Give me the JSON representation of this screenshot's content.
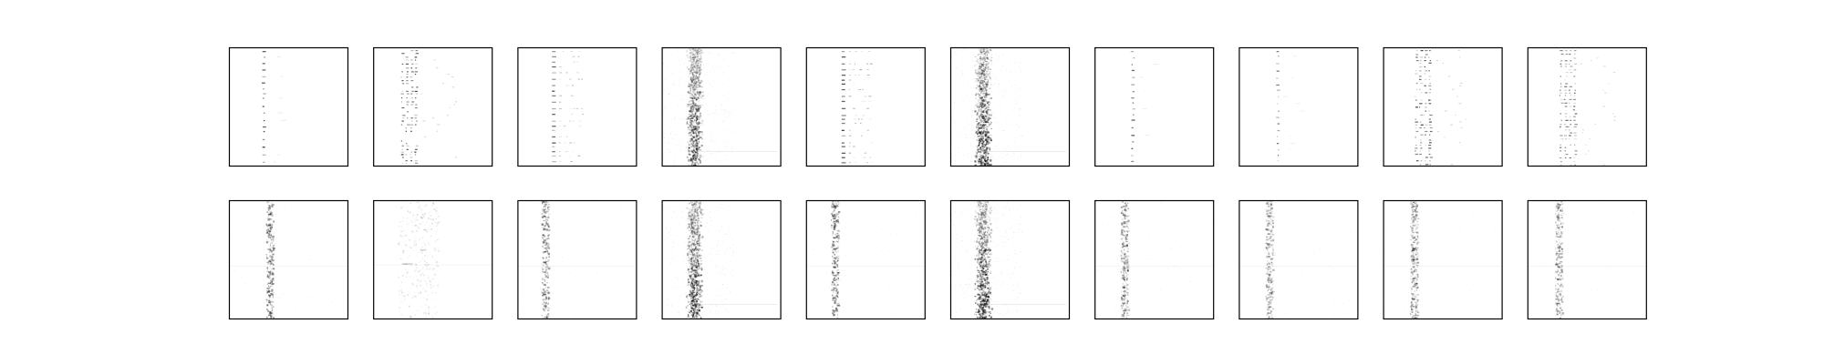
{
  "figure": {
    "rows": 2,
    "columns": 10,
    "colormap": "greys",
    "background_color": "#ffffff",
    "frame_color": "#000000",
    "ink_color": "#000000"
  },
  "panels": [
    {
      "row": 0,
      "col": 0,
      "style": "sparse-dots",
      "strength": 0.85
    },
    {
      "row": 0,
      "col": 1,
      "style": "dense-columns",
      "strength": 0.9
    },
    {
      "row": 0,
      "col": 2,
      "style": "dotted-rows",
      "strength": 0.75
    },
    {
      "row": 0,
      "col": 3,
      "style": "noisy-band",
      "strength": 0.9
    },
    {
      "row": 0,
      "col": 4,
      "style": "dotted-rows",
      "strength": 0.85
    },
    {
      "row": 0,
      "col": 5,
      "style": "noisy-band",
      "strength": 1.0
    },
    {
      "row": 0,
      "col": 6,
      "style": "sparse-dots",
      "strength": 0.7
    },
    {
      "row": 0,
      "col": 7,
      "style": "sparse-dots",
      "strength": 0.6
    },
    {
      "row": 0,
      "col": 8,
      "style": "dense-columns",
      "strength": 0.85
    },
    {
      "row": 0,
      "col": 9,
      "style": "dense-columns",
      "strength": 0.7
    },
    {
      "row": 1,
      "col": 0,
      "style": "soft-column",
      "strength": 0.8
    },
    {
      "row": 1,
      "col": 1,
      "style": "faint-cloud",
      "strength": 0.5
    },
    {
      "row": 1,
      "col": 2,
      "style": "soft-column",
      "strength": 0.7
    },
    {
      "row": 1,
      "col": 3,
      "style": "noisy-band",
      "strength": 0.95
    },
    {
      "row": 1,
      "col": 4,
      "style": "soft-column",
      "strength": 0.85
    },
    {
      "row": 1,
      "col": 5,
      "style": "noisy-band",
      "strength": 1.0
    },
    {
      "row": 1,
      "col": 6,
      "style": "soft-column",
      "strength": 0.65
    },
    {
      "row": 1,
      "col": 7,
      "style": "soft-column",
      "strength": 0.55
    },
    {
      "row": 1,
      "col": 8,
      "style": "soft-column",
      "strength": 0.7
    },
    {
      "row": 1,
      "col": 9,
      "style": "soft-column",
      "strength": 0.6
    }
  ]
}
